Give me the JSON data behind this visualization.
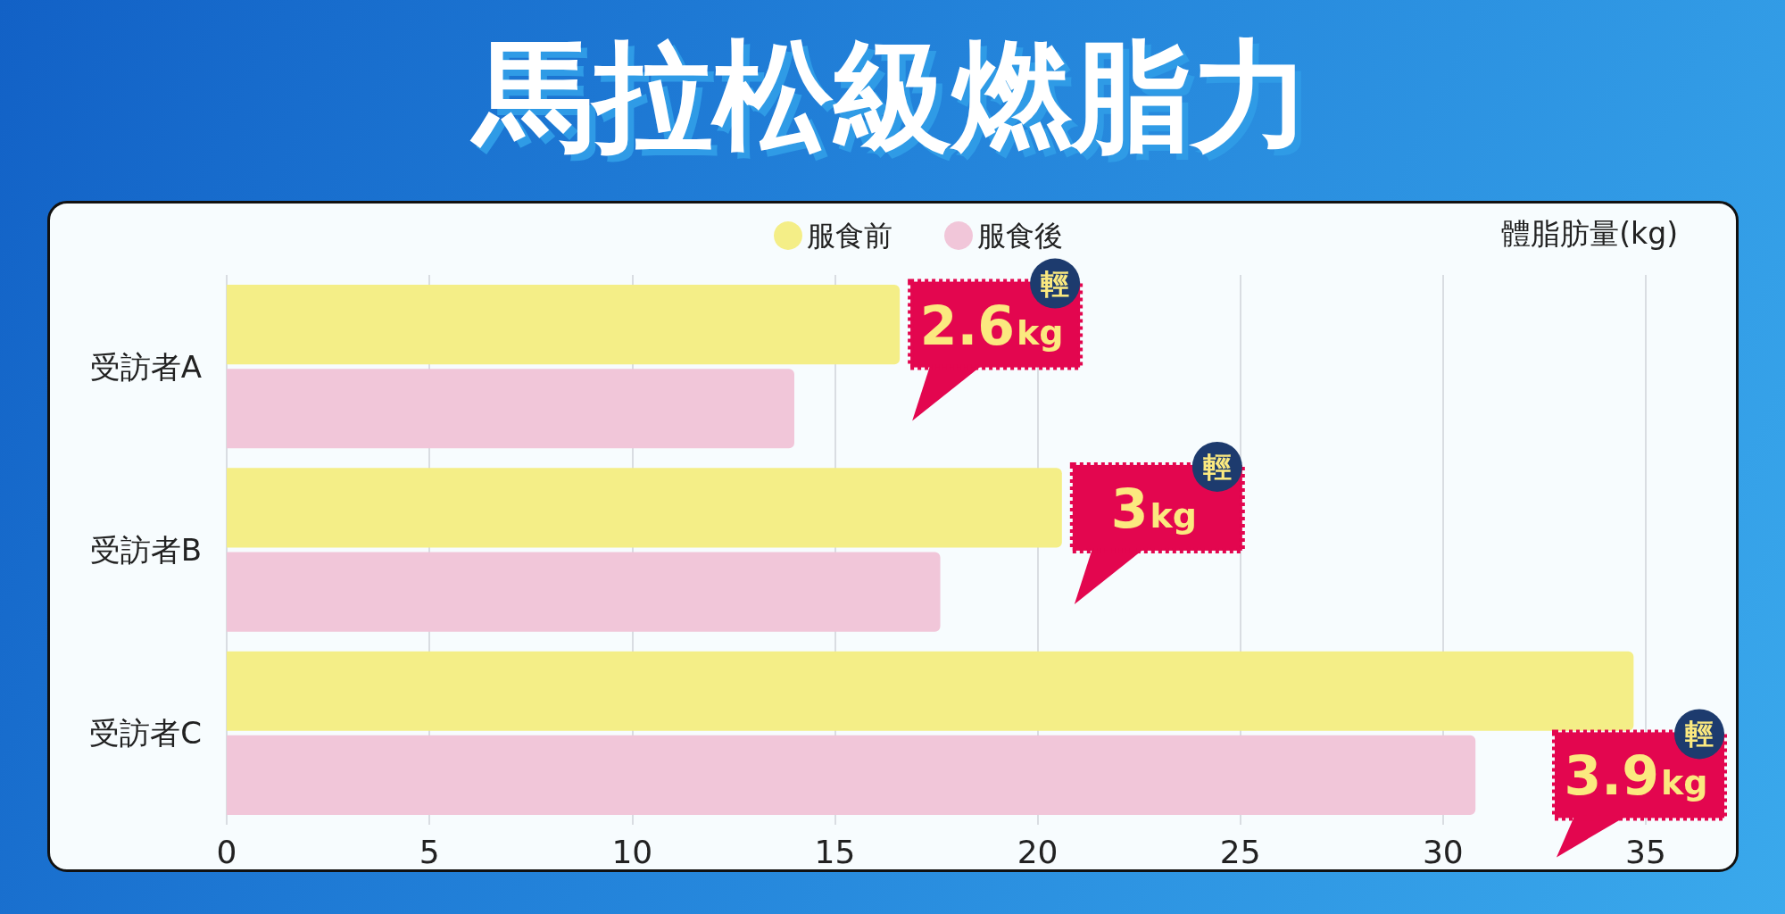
{
  "chart_data": {
    "type": "bar",
    "orientation": "horizontal",
    "title": "馬拉松級燃脂力",
    "xlabel": "體脂肪量(kg)",
    "categories": [
      "受訪者A",
      "受訪者B",
      "受訪者C"
    ],
    "series": [
      {
        "name": "服食前",
        "color": "#f4ee87",
        "values": [
          16.6,
          20.6,
          34.7
        ]
      },
      {
        "name": "服食後",
        "color": "#f1c6d9",
        "values": [
          14.0,
          17.6,
          30.8
        ]
      }
    ],
    "xlim": [
      0,
      35
    ],
    "xticks": [
      0,
      5,
      10,
      15,
      20,
      25,
      30,
      35
    ],
    "grid": "x",
    "legend": "top",
    "annotations": [
      "輕",
      "2.6kg",
      "輕",
      "3kg",
      "輕",
      "3.9kg"
    ]
  }
}
